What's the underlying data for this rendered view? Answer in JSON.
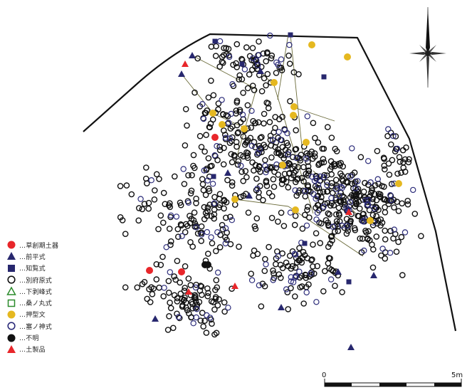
{
  "legend": [
    {
      "label": "…草創期土器",
      "symbol": "filled-circle",
      "color": "#e8262a"
    },
    {
      "label": "…前平式",
      "symbol": "filled-triangle",
      "color": "#27276e"
    },
    {
      "label": "…知覧式",
      "symbol": "filled-square",
      "color": "#27276e"
    },
    {
      "label": "…別府原式",
      "symbol": "open-circle",
      "color": "#111111"
    },
    {
      "label": "…下剥峰式",
      "symbol": "open-triangle",
      "color": "#2a8a2a"
    },
    {
      "label": "…桑ノ丸式",
      "symbol": "open-square",
      "color": "#2a8a2a"
    },
    {
      "label": "…押型文",
      "symbol": "filled-circle",
      "color": "#e5b820"
    },
    {
      "label": "…塞ノ神式",
      "symbol": "open-circle",
      "color": "#2c2c7a"
    },
    {
      "label": "…不明",
      "symbol": "filled-circle",
      "color": "#111111"
    },
    {
      "label": "…土製品",
      "symbol": "filled-triangle",
      "color": "#e8262a"
    }
  ],
  "scale_bar": {
    "start_label": "0",
    "end_label": "5m"
  },
  "north_arrow": {
    "icon": "compass-rose-icon"
  }
}
